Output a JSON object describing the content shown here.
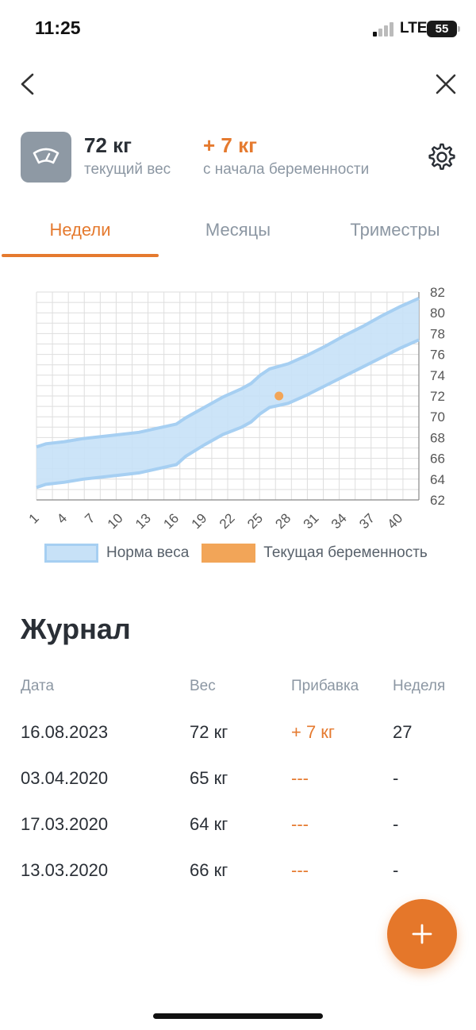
{
  "status_bar": {
    "time": "11:25",
    "network": "LTE",
    "battery": "55"
  },
  "summary": {
    "current_weight": "72 кг",
    "current_weight_label": "текущий вес",
    "gain": "+ 7 кг",
    "gain_label": "с начала беременности"
  },
  "tabs": [
    {
      "label": "Недели",
      "active": true
    },
    {
      "label": "Месяцы",
      "active": false
    },
    {
      "label": "Триместры",
      "active": false
    }
  ],
  "colors": {
    "accent": "#e57a2f",
    "norm_fill": "#c7e1f7",
    "norm_line": "#a6cff2",
    "current_point": "#f2a558"
  },
  "chart_data": {
    "type": "area",
    "x_ticks": [
      "1",
      "4",
      "7",
      "10",
      "13",
      "16",
      "19",
      "22",
      "25",
      "28",
      "31",
      "34",
      "37",
      "40"
    ],
    "y_ticks": [
      "62",
      "64",
      "66",
      "68",
      "70",
      "72",
      "74",
      "76",
      "78",
      "80",
      "82"
    ],
    "xlim": [
      1,
      42
    ],
    "ylim": [
      62,
      82
    ],
    "grid": true,
    "series": [
      {
        "name": "Норма веса",
        "kind": "band",
        "x": [
          1,
          2,
          4,
          6,
          8,
          10,
          12,
          14,
          16,
          17,
          19,
          21,
          23,
          24,
          25,
          26,
          28,
          30,
          32,
          34,
          36,
          38,
          40,
          42
        ],
        "upper": [
          67.1,
          67.4,
          67.6,
          67.9,
          68.1,
          68.3,
          68.5,
          68.9,
          69.3,
          69.9,
          70.9,
          71.9,
          72.7,
          73.2,
          74.0,
          74.6,
          75.1,
          75.9,
          76.8,
          77.8,
          78.7,
          79.7,
          80.6,
          81.4
        ],
        "lower": [
          63.2,
          63.5,
          63.7,
          64.0,
          64.2,
          64.4,
          64.6,
          65.0,
          65.4,
          66.2,
          67.3,
          68.3,
          69.0,
          69.5,
          70.3,
          70.9,
          71.3,
          72.1,
          73.0,
          73.9,
          74.8,
          75.7,
          76.6,
          77.4
        ]
      },
      {
        "name": "Текущая беременность",
        "kind": "point",
        "x": [
          27
        ],
        "y": [
          72
        ]
      }
    ],
    "legend": [
      "Норма веса",
      "Текущая беременность"
    ],
    "legend_position": "bottom"
  },
  "journal": {
    "title": "Журнал",
    "headers": [
      "Дата",
      "Вес",
      "Прибавка",
      "Неделя"
    ],
    "rows": [
      {
        "date": "16.08.2023",
        "weight": "72 кг",
        "gain": "+ 7 кг",
        "week": "27"
      },
      {
        "date": "03.04.2020",
        "weight": "65 кг",
        "gain": "---",
        "week": "-"
      },
      {
        "date": "17.03.2020",
        "weight": "64 кг",
        "gain": "---",
        "week": "-"
      },
      {
        "date": "13.03.2020",
        "weight": "66 кг",
        "gain": "---",
        "week": "-"
      }
    ]
  }
}
